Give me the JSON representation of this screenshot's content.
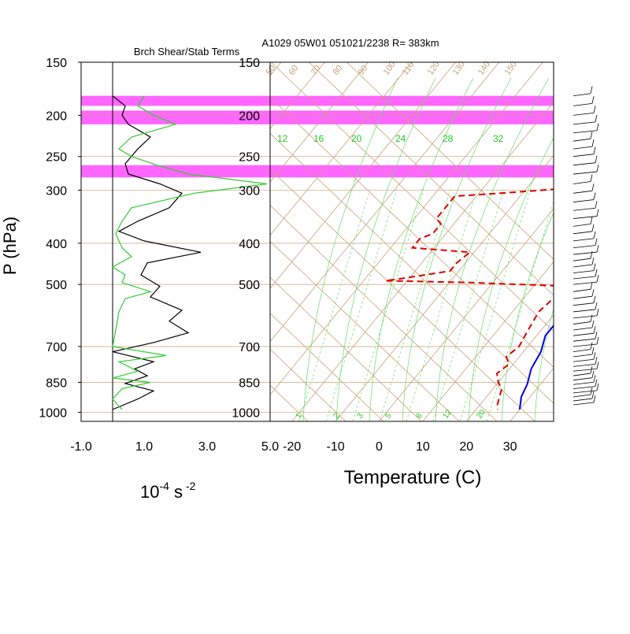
{
  "header": {
    "left_title": "Brch Shear/Stab Terms",
    "right_title": "A1029 05W01 051021/2238 R= 383km"
  },
  "axes": {
    "y_label": "P (hPa)",
    "shear_units_base": "10",
    "shear_units_exp": "-4",
    "shear_units_s": "s",
    "shear_units_sexp": "-2",
    "temp_label": "Temperature (C)"
  },
  "colors": {
    "highlight": "#ff66ff",
    "shear_line": "#000000",
    "stab_line": "#33cc33",
    "grid": "#c8a27a",
    "temp": "#0000dd",
    "dew": "#dd0000",
    "mixing": "#66dd66"
  },
  "chart_data": [
    {
      "type": "line",
      "title": "Brch Shear/Stab Terms",
      "ylabel": "P (hPa)",
      "xlabel": "10-4 s-2",
      "y_scale": "log",
      "ylim": [
        1050,
        150
      ],
      "xlim": [
        -1.0,
        5.0
      ],
      "x_ticks": [
        "-1.0",
        "1.0",
        "3.0",
        "5.0"
      ],
      "y_ticks": [
        150,
        200,
        250,
        300,
        400,
        500,
        700,
        850,
        1000
      ],
      "highlight_bands": [
        [
          180,
          190
        ],
        [
          195,
          210
        ],
        [
          262,
          280
        ]
      ],
      "series": [
        {
          "color": "black",
          "points": [
            [
              0.0,
              180
            ],
            [
              0.4,
              190
            ],
            [
              0.3,
              200
            ],
            [
              0.5,
              210
            ],
            [
              1.2,
              225
            ],
            [
              0.8,
              240
            ],
            [
              0.4,
              260
            ],
            [
              0.5,
              275
            ],
            [
              1.5,
              290
            ],
            [
              2.2,
              305
            ],
            [
              1.8,
              330
            ],
            [
              0.8,
              355
            ],
            [
              0.2,
              375
            ],
            [
              1.0,
              395
            ],
            [
              2.8,
              420
            ],
            [
              1.1,
              445
            ],
            [
              0.9,
              475
            ],
            [
              1.5,
              505
            ],
            [
              1.2,
              535
            ],
            [
              2.2,
              575
            ],
            [
              1.8,
              610
            ],
            [
              2.4,
              650
            ],
            [
              1.3,
              685
            ],
            [
              0.0,
              720
            ],
            [
              1.3,
              760
            ],
            [
              0.7,
              790
            ],
            [
              1.1,
              820
            ],
            [
              0.4,
              855
            ],
            [
              1.3,
              890
            ],
            [
              0.8,
              930
            ],
            [
              0.0,
              985
            ]
          ]
        },
        {
          "color": "green",
          "points": [
            [
              1.0,
              180
            ],
            [
              0.8,
              190
            ],
            [
              1.3,
              200
            ],
            [
              2.0,
              210
            ],
            [
              0.6,
              225
            ],
            [
              0.2,
              240
            ],
            [
              0.6,
              250
            ],
            [
              1.4,
              262
            ],
            [
              2.4,
              275
            ],
            [
              4.9,
              290
            ],
            [
              2.6,
              305
            ],
            [
              0.6,
              330
            ],
            [
              0.3,
              355
            ],
            [
              0.1,
              380
            ],
            [
              0.3,
              410
            ],
            [
              0.6,
              430
            ],
            [
              0.0,
              455
            ],
            [
              0.4,
              475
            ],
            [
              0.3,
              495
            ],
            [
              1.2,
              520
            ],
            [
              0.4,
              540
            ],
            [
              0.2,
              580
            ],
            [
              0.1,
              640
            ],
            [
              0.0,
              700
            ],
            [
              1.7,
              735
            ],
            [
              0.2,
              760
            ],
            [
              0.8,
              800
            ],
            [
              0.0,
              830
            ],
            [
              1.2,
              850
            ],
            [
              0.3,
              880
            ],
            [
              0.0,
              930
            ],
            [
              0.3,
              985
            ]
          ]
        }
      ]
    },
    {
      "type": "line",
      "title": "A1029 05W01 051021/2238 R= 383km",
      "xlabel": "Temperature (C)",
      "ylabel": "P (hPa)",
      "y_scale": "log",
      "ylim": [
        1050,
        150
      ],
      "xlim": [
        -25,
        40
      ],
      "x_ticks": [
        -20,
        -10,
        0,
        10,
        20,
        30
      ],
      "y_ticks": [
        150,
        200,
        250,
        300,
        400,
        500,
        700,
        850,
        1000
      ],
      "mixing_ratio_labels": [
        "12",
        "16",
        "20",
        "24",
        "28",
        "32"
      ],
      "bottom_mixing_labels": [
        "1",
        "2",
        "3",
        "5",
        "8",
        "12",
        "20"
      ],
      "grid_labels": [
        "50",
        "60",
        "70",
        "80",
        "90",
        "100",
        "110",
        "120",
        "130",
        "140",
        "150"
      ],
      "series": [
        {
          "name": "Temperature",
          "color": "blue",
          "points": [
            [
              -1,
              180
            ],
            [
              2,
              195
            ],
            [
              4,
              215
            ],
            [
              6,
              240
            ],
            [
              9,
              270
            ],
            [
              11,
              300
            ],
            [
              11,
              330
            ],
            [
              14,
              370
            ],
            [
              17,
              400
            ],
            [
              17,
              420
            ],
            [
              19,
              460
            ],
            [
              21,
              500
            ],
            [
              21,
              540
            ],
            [
              22,
              600
            ],
            [
              22,
              660
            ],
            [
              24,
              720
            ],
            [
              25,
              790
            ],
            [
              27,
              860
            ],
            [
              28,
              920
            ],
            [
              30,
              985
            ]
          ]
        },
        {
          "name": "Dewpoint",
          "color": "red",
          "points": [
            [
              -6,
              190
            ],
            [
              -3,
              210
            ],
            [
              0,
              225
            ],
            [
              4,
              250
            ],
            [
              5,
              285
            ],
            [
              3,
              295
            ],
            [
              -15,
              305
            ],
            [
              -25,
              310
            ],
            [
              -25,
              350
            ],
            [
              -23,
              360
            ],
            [
              -23,
              380
            ],
            [
              -25,
              390
            ],
            [
              -25,
              410
            ],
            [
              -11,
              420
            ],
            [
              -12,
              445
            ],
            [
              -12,
              465
            ],
            [
              -22,
              485
            ],
            [
              -25,
              490
            ],
            [
              -5,
              495
            ],
            [
              18,
              505
            ],
            [
              17,
              530
            ],
            [
              16,
              580
            ],
            [
              17,
              640
            ],
            [
              18,
              700
            ],
            [
              17,
              740
            ],
            [
              19,
              770
            ],
            [
              18,
              810
            ],
            [
              20,
              850
            ],
            [
              22,
              880
            ],
            [
              23,
              920
            ],
            [
              24,
              960
            ],
            [
              25,
              985
            ]
          ]
        }
      ]
    },
    {
      "type": "scatter",
      "title": "wind barbs",
      "levels_hpa": [
        180,
        190,
        200,
        210,
        220,
        230,
        240,
        250,
        262,
        275,
        290,
        305,
        320,
        335,
        350,
        365,
        380,
        395,
        410,
        425,
        440,
        455,
        470,
        485,
        500,
        520,
        540,
        560,
        580,
        600,
        620,
        640,
        660,
        680,
        700,
        720,
        740,
        760,
        780,
        800,
        820,
        840,
        860,
        880,
        900,
        920,
        940,
        960
      ]
    }
  ]
}
